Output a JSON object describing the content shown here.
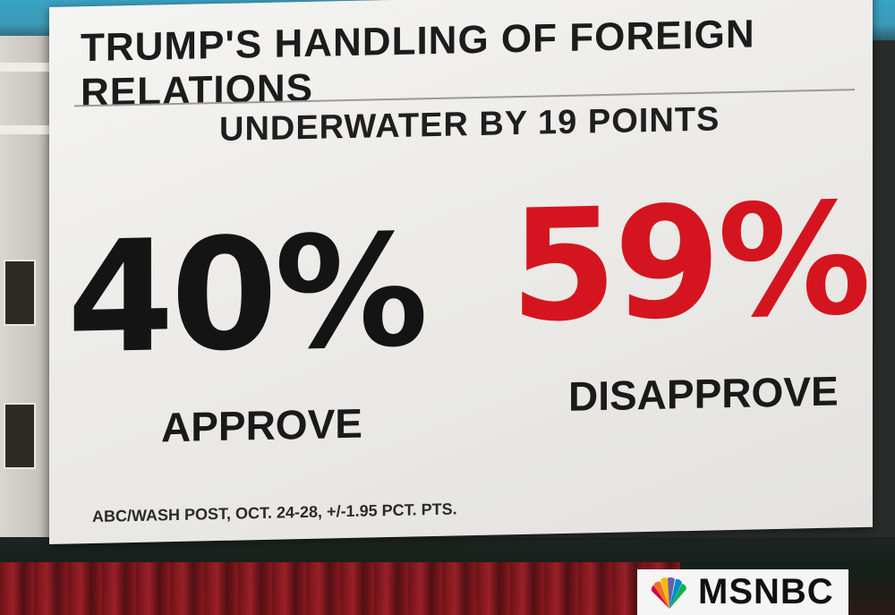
{
  "graphic": {
    "title": "TRUMP'S HANDLING OF FOREIGN RELATIONS",
    "subtitle": "UNDERWATER BY 19 POINTS",
    "approve": {
      "value": "40%",
      "label": "APPROVE"
    },
    "disapprove": {
      "value": "59%",
      "label": "DISAPPROVE"
    },
    "source": "ABC/WASH POST, OCT. 24-28, +/-1.95 PCT. PTS."
  },
  "network": {
    "brand": "MSNBC",
    "icon": "peacock-logo-icon"
  },
  "colors": {
    "approve": "#141414",
    "disapprove": "#d4151f",
    "card": "#f0efec"
  }
}
